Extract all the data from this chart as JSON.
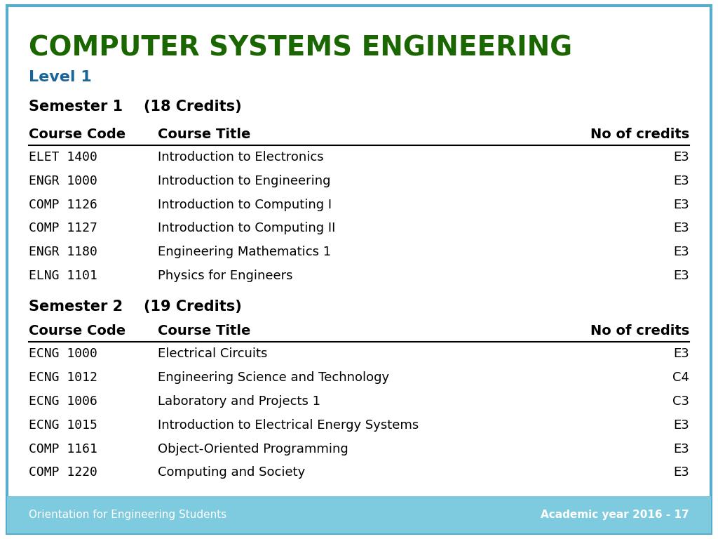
{
  "title": "COMPUTER SYSTEMS ENGINEERING",
  "title_color": "#1a6600",
  "level": "Level 1",
  "level_color": "#1a6699",
  "background_color": "#ffffff",
  "border_color": "#5aaccc",
  "footer_bg": "#7ecbe0",
  "footer_left": "Orientation for Engineering Students",
  "footer_right": "Academic year 2016 - 17",
  "footer_text_color": "#ffffff",
  "semester1_header": "Semester 1",
  "semester1_credits": "(18 Credits)",
  "semester2_header": "Semester 2",
  "semester2_credits": "(19 Credits)",
  "col_headers": [
    "Course Code",
    "Course Title",
    "No of credits"
  ],
  "sem1_courses": [
    [
      "ELET 1400",
      "Introduction to Electronics",
      "E3"
    ],
    [
      "ENGR 1000",
      "Introduction to Engineering",
      "E3"
    ],
    [
      "COMP 1126",
      "Introduction to Computing I",
      "E3"
    ],
    [
      "COMP 1127",
      "Introduction to Computing II",
      "E3"
    ],
    [
      "ENGR 1180",
      "Engineering Mathematics 1",
      "E3"
    ],
    [
      "ELNG 1101",
      "Physics for Engineers",
      "E3"
    ]
  ],
  "sem2_courses": [
    [
      "ECNG 1000",
      "Electrical Circuits",
      "E3"
    ],
    [
      "ECNG 1012",
      "Engineering Science and Technology",
      "C4"
    ],
    [
      "ECNG 1006",
      "Laboratory and Projects 1",
      "C3"
    ],
    [
      "ECNG 1015",
      "Introduction to Electrical Energy Systems",
      "E3"
    ],
    [
      "COMP 1161",
      "Object-Oriented Programming",
      "E3"
    ],
    [
      "COMP 1220",
      "Computing and Society",
      "E3"
    ]
  ]
}
